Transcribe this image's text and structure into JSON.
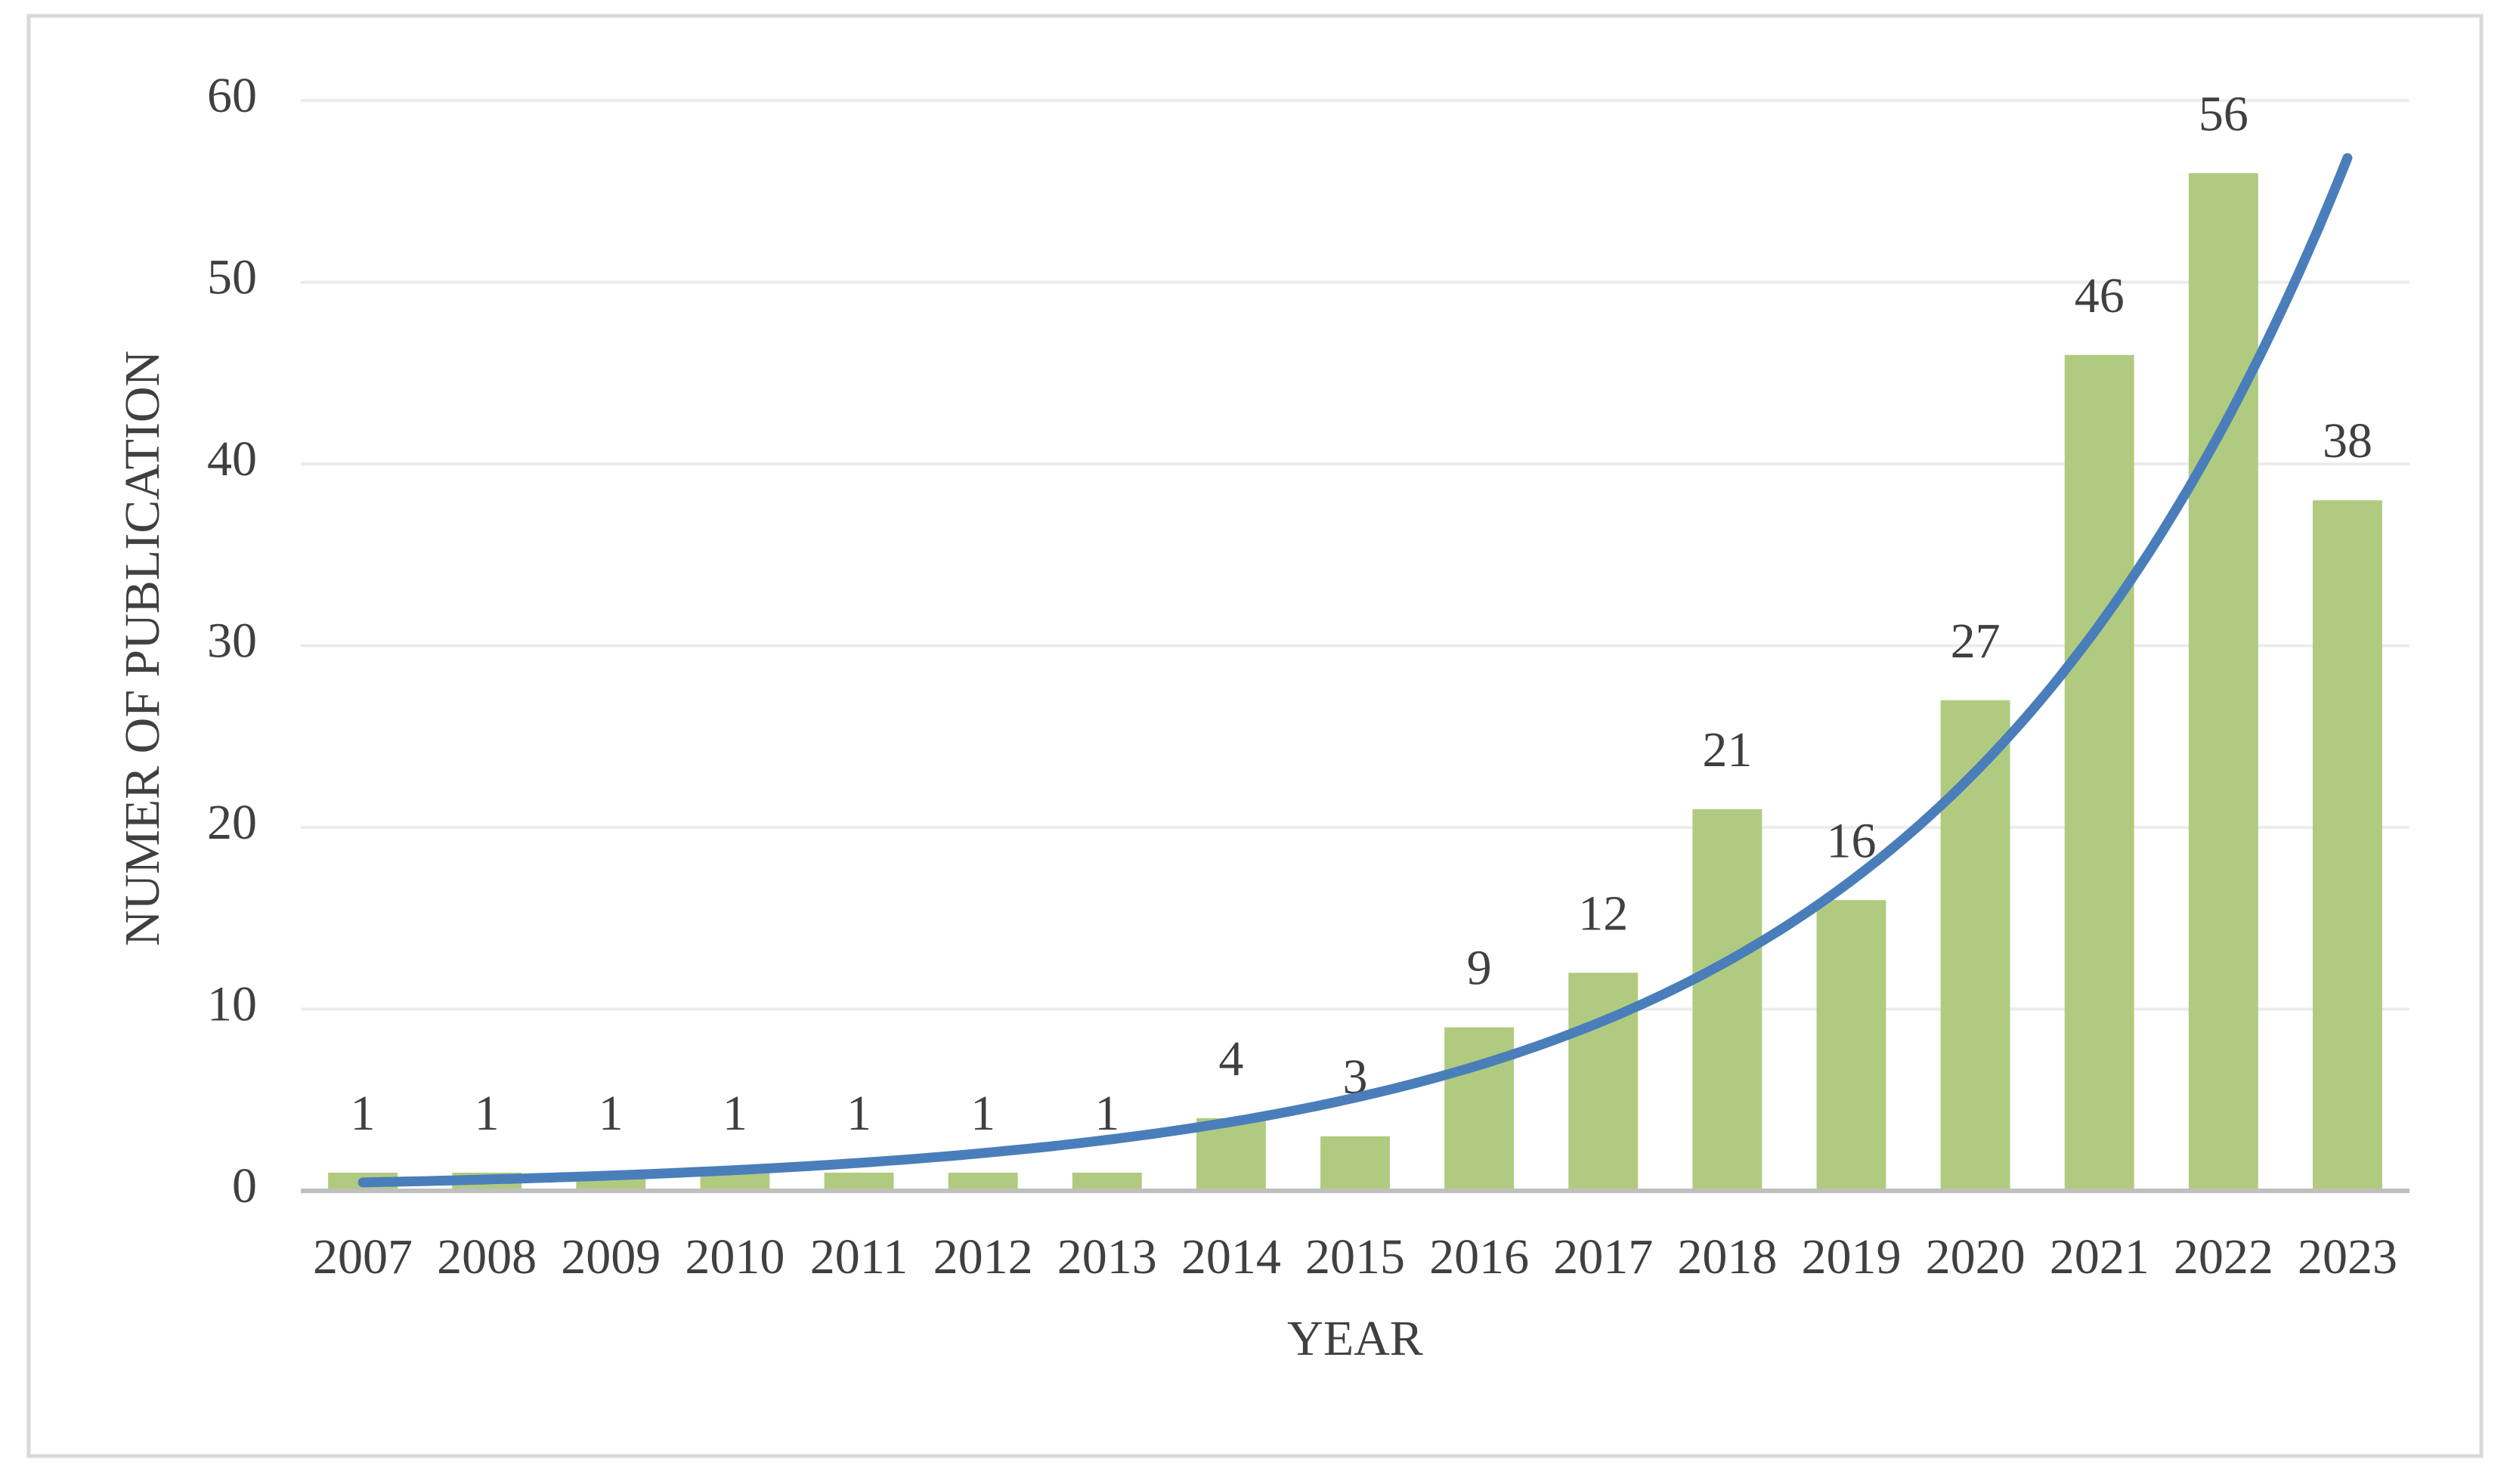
{
  "chart_data": {
    "type": "bar",
    "x_label": "YEAR",
    "y_label": "NUMER OF PUBLICATION",
    "categories": [
      "2007",
      "2008",
      "2009",
      "2010",
      "2011",
      "2012",
      "2013",
      "2014",
      "2015",
      "2016",
      "2017",
      "2018",
      "2019",
      "2020",
      "2021",
      "2022",
      "2023"
    ],
    "values": [
      1,
      1,
      1,
      1,
      1,
      1,
      1,
      4,
      3,
      9,
      12,
      21,
      16,
      27,
      46,
      56,
      38
    ],
    "color": "#b0cb80",
    "ylim": [
      0,
      60
    ],
    "yticks": [
      0,
      10,
      20,
      30,
      40,
      50,
      60
    ],
    "grid": true,
    "trendline": {
      "type": "exponential",
      "color": "#4a7ebb"
    }
  }
}
